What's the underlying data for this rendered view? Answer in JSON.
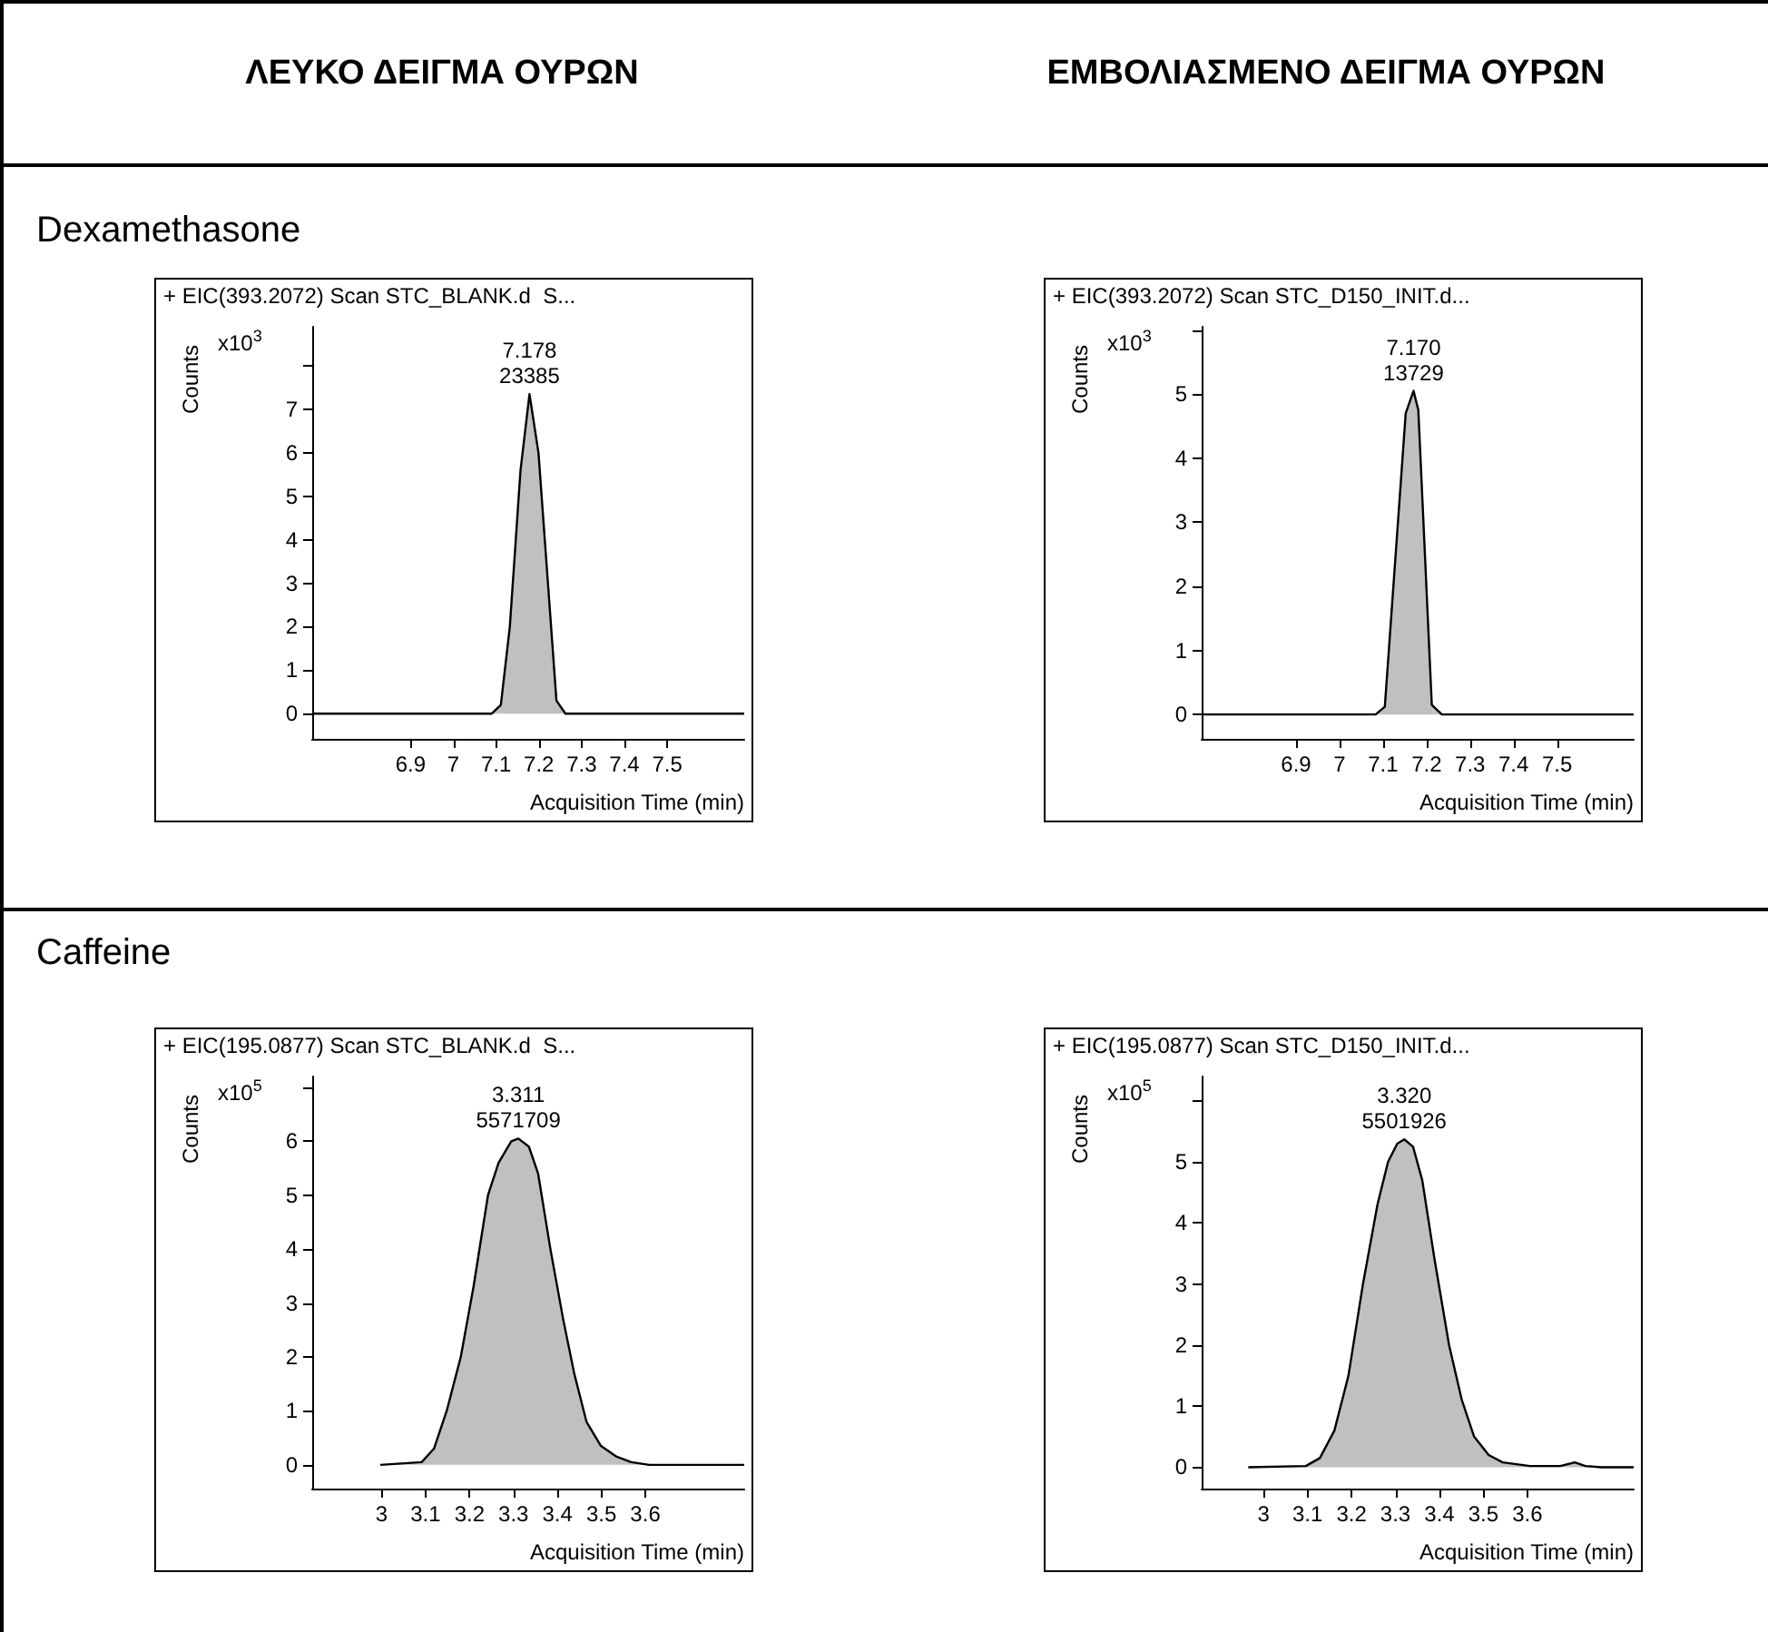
{
  "chart_data": [
    {
      "type": "other",
      "annotations": [
        "ΛΕΥΚΟ ΔΕΙΓΜΑ ΟΥΡΩΝ",
        "ΕΜΒΟΛΙΑΣΜΕΝΟ ΔΕΙΓΜΑ ΟΥΡΩΝ",
        "Dexamethasone",
        "Caffeine"
      ]
    },
    {
      "type": "area",
      "title": "+ EIC(393.2072) Scan STC_BLANK.d  S...",
      "xlabel": "Acquisition Time (min)",
      "ylabel": "Counts",
      "annotations": [
        "x10$^{3}$",
        {
          "text": "7.178\n23385",
          "x": 7.178,
          "y": 7.35
        }
      ],
      "x": [
        6.67,
        7.09,
        7.111,
        7.132,
        7.157,
        7.178,
        7.199,
        7.241,
        7.262,
        7.68
      ],
      "series": [
        {
          "color": "#c0c0c0",
          "values": [
            0,
            0,
            0.2,
            2,
            5.6,
            7.35,
            6.0,
            0.3,
            0,
            0
          ]
        }
      ],
      "xlim": [
        6.67,
        7.68
      ],
      "xticks": [
        6.9,
        7,
        7.1,
        7.2,
        7.3,
        7.4,
        7.5
      ],
      "ylim": [
        -0.58,
        8.9
      ],
      "yticks": [
        0,
        1,
        2,
        3,
        4,
        5,
        6,
        7,
        {
          "value": 8,
          "label": null
        }
      ],
      "grid": false
    },
    {
      "type": "area",
      "title": "+ EIC(393.2072) Scan STC_D150_INIT.d...",
      "xlabel": "Acquisition Time (min)",
      "ylabel": "Counts",
      "annotations": [
        "x10$^{3}$",
        {
          "text": "7.170\n13729",
          "x": 7.17,
          "y": 5.05
        }
      ],
      "x": [
        6.683,
        7.083,
        7.104,
        7.152,
        7.17,
        7.181,
        7.212,
        7.235,
        7.676
      ],
      "series": [
        {
          "color": "#c0c0c0",
          "values": [
            0,
            0,
            0.12,
            4.7,
            5.05,
            4.75,
            0.15,
            0,
            0
          ]
        }
      ],
      "xlim": [
        6.683,
        7.676
      ],
      "xticks": [
        6.9,
        7,
        7.1,
        7.2,
        7.3,
        7.4,
        7.5
      ],
      "ylim": [
        -0.38,
        6.05
      ],
      "yticks": [
        0,
        1,
        2,
        3,
        4,
        5,
        {
          "value": 6,
          "label": null
        }
      ],
      "grid": false
    },
    {
      "type": "area",
      "title": "+ EIC(195.0877) Scan STC_BLANK.d  S...",
      "xlabel": "Acquisition Time (min)",
      "ylabel": "Counts",
      "annotations": [
        "x10$^{5}$",
        {
          "text": "3.311\n5571709",
          "x": 3.311,
          "y": 6.05
        }
      ],
      "x": [
        2.997,
        3.091,
        3.119,
        3.148,
        3.18,
        3.209,
        3.242,
        3.266,
        3.295,
        3.311,
        3.335,
        3.356,
        3.384,
        3.413,
        3.438,
        3.466,
        3.499,
        3.535,
        3.568,
        3.609,
        3.825
      ],
      "series": [
        {
          "color": "#c0c0c0",
          "values": [
            0,
            0.05,
            0.3,
            1.0,
            2.0,
            3.3,
            5.0,
            5.6,
            6.0,
            6.05,
            5.9,
            5.4,
            4.0,
            2.7,
            1.7,
            0.8,
            0.35,
            0.15,
            0.05,
            0,
            0
          ]
        }
      ],
      "xlim": [
        2.842,
        3.825
      ],
      "xticks": [
        3,
        3.1,
        3.2,
        3.3,
        3.4,
        3.5,
        3.6
      ],
      "ylim": [
        -0.44,
        7.2
      ],
      "yticks": [
        0,
        1,
        2,
        3,
        4,
        5,
        6,
        {
          "value": 7,
          "label": null
        }
      ],
      "grid": false
    },
    {
      "type": "area",
      "title": "+ EIC(195.0877) Scan STC_D150_INIT.d...",
      "xlabel": "Acquisition Time (min)",
      "ylabel": "Counts",
      "annotations": [
        "x10$^{5}$",
        {
          "text": "3.320\n5501926",
          "x": 3.32,
          "y": 5.37
        }
      ],
      "x": [
        2.965,
        3.096,
        3.128,
        3.161,
        3.193,
        3.226,
        3.259,
        3.283,
        3.304,
        3.32,
        3.34,
        3.361,
        3.389,
        3.422,
        3.451,
        3.479,
        3.512,
        3.544,
        3.606,
        3.675,
        3.708,
        3.732,
        3.769,
        3.842
      ],
      "series": [
        {
          "color": "#c0c0c0",
          "values": [
            0,
            0.02,
            0.15,
            0.6,
            1.5,
            3.0,
            4.3,
            5.0,
            5.3,
            5.37,
            5.25,
            4.7,
            3.4,
            2.0,
            1.1,
            0.5,
            0.2,
            0.08,
            0.02,
            0.02,
            0.08,
            0.02,
            0,
            0
          ]
        }
      ],
      "xlim": [
        2.859,
        3.842
      ],
      "xticks": [
        3,
        3.1,
        3.2,
        3.3,
        3.4,
        3.5,
        3.6
      ],
      "ylim": [
        -0.35,
        6.4
      ],
      "yticks": [
        0,
        1,
        2,
        3,
        4,
        5,
        {
          "value": 6,
          "label": null
        }
      ],
      "grid": false
    }
  ]
}
